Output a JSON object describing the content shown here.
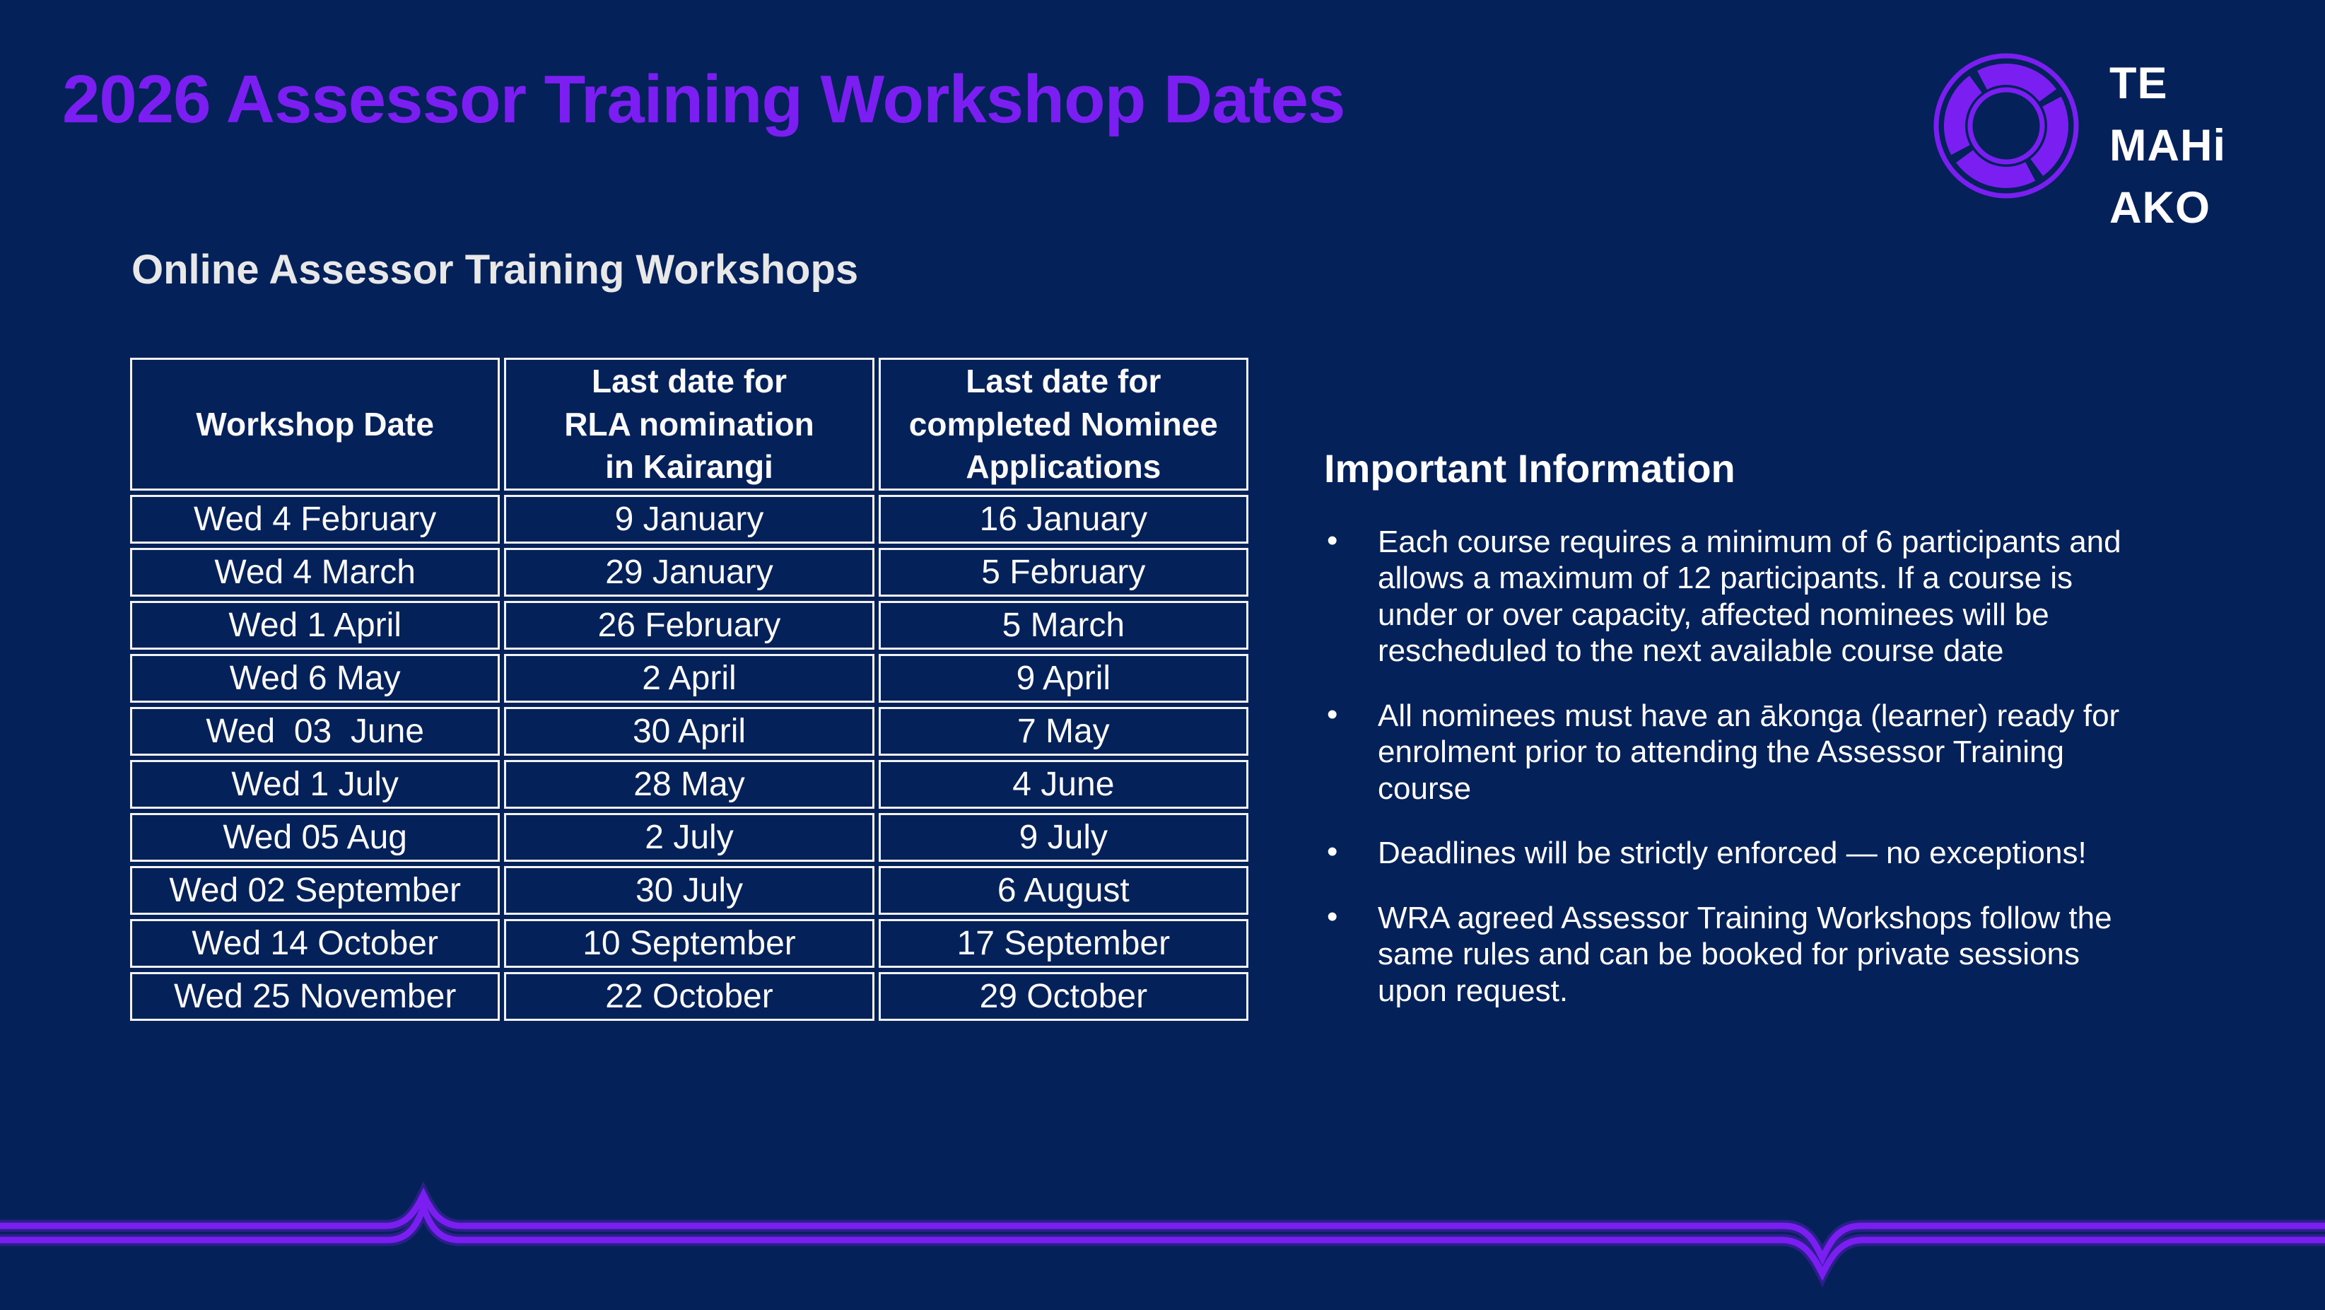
{
  "page": {
    "title": "2026 Assessor Training Workshop Dates",
    "subtitle": "Online Assessor Training Workshops"
  },
  "logo": {
    "lines": [
      "TE",
      "MAHi",
      "AKO"
    ]
  },
  "table": {
    "headers": [
      "Workshop Date",
      "Last date for\nRLA nomination\nin Kairangi",
      "Last date for\ncompleted Nominee\nApplications"
    ],
    "rows": [
      [
        "Wed 4 February",
        "9 January",
        "16 January"
      ],
      [
        "Wed 4 March",
        "29 January",
        "5 February"
      ],
      [
        "Wed 1 April",
        "26 February",
        "5 March"
      ],
      [
        "Wed 6 May",
        "2 April",
        "9 April"
      ],
      [
        "Wed  03  June",
        "30 April",
        "7 May"
      ],
      [
        "Wed 1 July",
        "28 May",
        "4 June"
      ],
      [
        "Wed 05 Aug",
        "2 July",
        "9 July"
      ],
      [
        "Wed 02 September",
        "30 July",
        "6 August"
      ],
      [
        "Wed 14 October",
        "10 September",
        "17 September"
      ],
      [
        "Wed 25 November",
        "22 October",
        "29 October"
      ]
    ]
  },
  "info": {
    "heading": "Important Information",
    "bullets": [
      "Each course requires a minimum of 6 participants and allows a maximum of 12 participants. If a course is under or over capacity, affected nominees will be rescheduled to the next available course date",
      "All nominees must have an ākonga (learner) ready for enrolment prior to attending the Assessor Training course",
      "Deadlines will be strictly enforced — no exceptions!",
      "WRA agreed Assessor Training Workshops follow the same rules and can be booked for private sessions upon request."
    ]
  },
  "colors": {
    "background": "#052159",
    "accent_purple": "#7B1EF2",
    "table_border": "#F2F2F2",
    "text_white": "#FFFFFF"
  }
}
